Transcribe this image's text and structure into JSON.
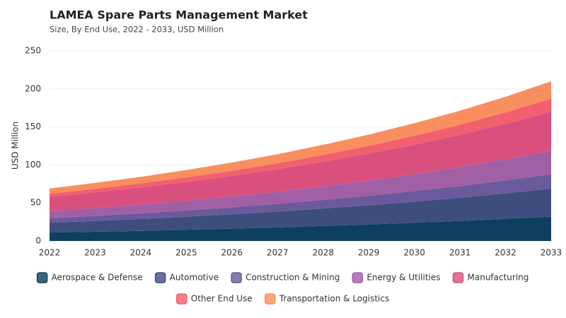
{
  "chart_data": {
    "type": "stacked_area",
    "title": "LAMEA Spare Parts Management Market",
    "subtitle": "Size, By End Use, 2022 - 2033, USD Million",
    "y_label": "USD Million",
    "categories": [
      "2022",
      "2023",
      "2024",
      "2025",
      "2026",
      "2027",
      "2028",
      "2029",
      "2030",
      "2031",
      "2032",
      "2033"
    ],
    "ylim": [
      0,
      250
    ],
    "yticks": [
      0,
      50,
      100,
      150,
      200,
      250
    ],
    "grid": true,
    "series": [
      {
        "name": "Aerospace & Defense",
        "color": "#0d3f5f",
        "values": [
          11,
          12.1,
          13.3,
          14.7,
          16.2,
          17.8,
          19.7,
          21.7,
          23.9,
          26.3,
          29.0,
          32
        ]
      },
      {
        "name": "Automotive",
        "color": "#3d4e7e",
        "values": [
          13,
          14.3,
          15.7,
          17.3,
          19.0,
          20.9,
          23.0,
          25.3,
          27.8,
          30.6,
          33.6,
          37
        ]
      },
      {
        "name": "Construction & Mining",
        "color": "#6a5a9c",
        "values": [
          6,
          6.7,
          7.4,
          8.2,
          9.1,
          10.1,
          11.3,
          12.5,
          13.9,
          15.4,
          17.1,
          19
        ]
      },
      {
        "name": "Energy & Utilities",
        "color": "#a15fa6",
        "values": [
          9,
          10.1,
          11.3,
          12.6,
          14.1,
          15.8,
          17.7,
          19.8,
          22.2,
          24.8,
          27.8,
          31
        ]
      },
      {
        "name": "Manufacturing",
        "color": "#d9507f",
        "values": [
          19,
          20.8,
          22.7,
          24.9,
          27.2,
          29.8,
          32.6,
          35.6,
          39.0,
          42.6,
          46.6,
          51
        ]
      },
      {
        "name": "Other End Use",
        "color": "#f25f6e",
        "values": [
          4,
          4.6,
          5.2,
          5.9,
          6.8,
          7.7,
          8.8,
          10.1,
          11.5,
          13.1,
          14.9,
          17
        ]
      },
      {
        "name": "Transportation & Logistics",
        "color": "#f98e5f",
        "values": [
          7,
          7.8,
          8.7,
          9.7,
          10.8,
          12.0,
          13.4,
          14.9,
          16.6,
          18.5,
          20.6,
          23
        ]
      }
    ]
  }
}
